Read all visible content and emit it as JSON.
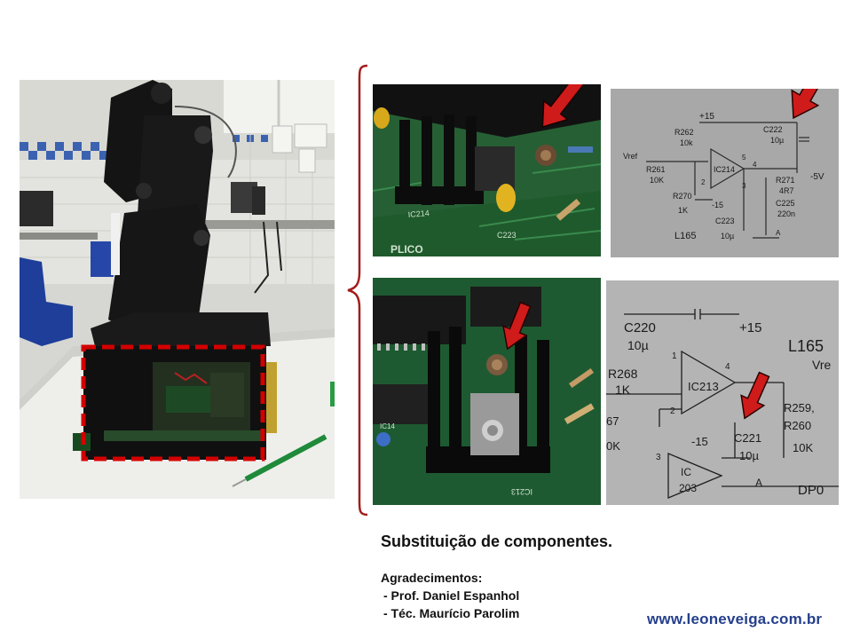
{
  "caption": "Substituição de componentes.",
  "acknowledgements": {
    "title": "Agradecimentos:",
    "people": [
      "- Prof. Daniel Espanhol",
      "- Téc. Maurício Parolim"
    ]
  },
  "website": "www.leoneveiga.com.br",
  "schematic_top": {
    "labels": {
      "v_plus": "+15",
      "r262": "R262",
      "r262_val": "10k",
      "c222": "C222",
      "c222_val": "10µ",
      "vref": "Vref",
      "r261": "R261",
      "r261_val": "10K",
      "ic": "IC214",
      "pin5": "5",
      "pin4": "4",
      "pin3": "3",
      "pin2": "2",
      "neg5v": "-5V",
      "r271": "R271",
      "r271_val": "4R7",
      "r270": "R270",
      "r270_val": "1K",
      "v_minus": "-15",
      "c225": "C225",
      "c225_val": "220n",
      "c223": "C223",
      "c223_val": "10µ",
      "board": "L165",
      "gnd": "A"
    }
  },
  "schematic_bottom": {
    "labels": {
      "c220": "C220",
      "c220_val": "10µ",
      "v_plus": "+15",
      "board": "L165",
      "vref": "Vre",
      "r268": "R268",
      "r268_val": "1K",
      "pin1": "1",
      "pin4": "4",
      "pin2": "2",
      "ic": "IC213",
      "r259": "R259,",
      "r260": "R260",
      "r260_val": "10K",
      "r67": "67",
      "r67_val": "0K",
      "v_minus": "-15",
      "c221": "C221",
      "c221_val": "10µ",
      "pin3": "3",
      "ic2_a": "IC",
      "ic2_b": "203",
      "gnd": "A",
      "dp": "DP0"
    }
  },
  "pcb_top": {
    "labels": {
      "ic": "IC214",
      "cap": "C223",
      "plicom": "PLICO"
    }
  },
  "pcb_bottom": {
    "labels": {
      "ic_a": "IC213",
      "ic_b": "IC14"
    }
  },
  "colors": {
    "arrow": "#d01b1b",
    "brace": "#a31d1d",
    "highlight": "#d40000",
    "link": "#243f8c"
  }
}
